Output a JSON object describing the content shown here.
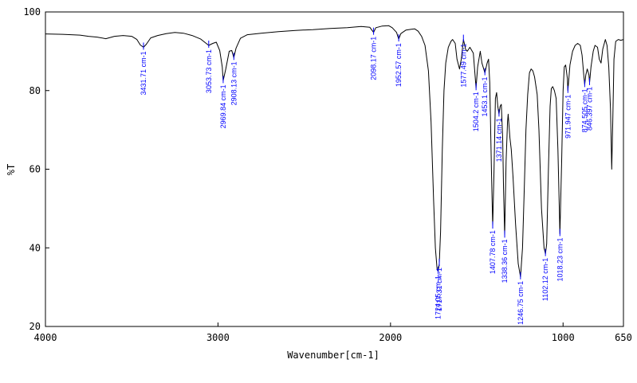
{
  "chart_data": {
    "type": "line",
    "title": "",
    "xlabel": "Wavenumber[cm-1]",
    "ylabel": "%T",
    "xlim": [
      4000,
      650
    ],
    "ylim": [
      20,
      100
    ],
    "x_reversed": true,
    "grid": false,
    "legend": "none",
    "line_color": "#000000",
    "peak_label_color": "#0000ff",
    "x_ticks": [
      {
        "value": 4000,
        "label": "4000"
      },
      {
        "value": 3000,
        "label": "3000"
      },
      {
        "value": 2000,
        "label": "2000"
      },
      {
        "value": 1000,
        "label": "1000"
      },
      {
        "value": 650,
        "label": "650"
      }
    ],
    "y_ticks": [
      {
        "value": 100,
        "label": "100"
      },
      {
        "value": 80,
        "label": "80"
      },
      {
        "value": 60,
        "label": "60"
      },
      {
        "value": 40,
        "label": "40"
      },
      {
        "value": 20,
        "label": "20"
      }
    ],
    "spectrum": [
      [
        4000,
        94.4
      ],
      [
        3900,
        94.3
      ],
      [
        3800,
        94.1
      ],
      [
        3750,
        93.8
      ],
      [
        3700,
        93.6
      ],
      [
        3650,
        93.2
      ],
      [
        3600,
        93.8
      ],
      [
        3550,
        94.0
      ],
      [
        3500,
        93.8
      ],
      [
        3470,
        93.0
      ],
      [
        3450,
        91.6
      ],
      [
        3431.71,
        91.0
      ],
      [
        3415,
        91.8
      ],
      [
        3390,
        93.4
      ],
      [
        3350,
        94.0
      ],
      [
        3300,
        94.5
      ],
      [
        3250,
        94.8
      ],
      [
        3200,
        94.6
      ],
      [
        3150,
        94.0
      ],
      [
        3100,
        93.1
      ],
      [
        3080,
        92.4
      ],
      [
        3053.73,
        91.5
      ],
      [
        3030,
        92.0
      ],
      [
        3010,
        92.3
      ],
      [
        2990,
        90.2
      ],
      [
        2975,
        86.0
      ],
      [
        2969.84,
        82.5
      ],
      [
        2955,
        85.5
      ],
      [
        2935,
        90.0
      ],
      [
        2920,
        90.2
      ],
      [
        2908.13,
        88.4
      ],
      [
        2895,
        90.8
      ],
      [
        2870,
        93.3
      ],
      [
        2830,
        94.2
      ],
      [
        2750,
        94.6
      ],
      [
        2650,
        95.0
      ],
      [
        2550,
        95.3
      ],
      [
        2450,
        95.5
      ],
      [
        2350,
        95.8
      ],
      [
        2250,
        96.0
      ],
      [
        2170,
        96.3
      ],
      [
        2120,
        96.1
      ],
      [
        2098.17,
        94.8
      ],
      [
        2085,
        96.0
      ],
      [
        2050,
        96.4
      ],
      [
        2010,
        96.5
      ],
      [
        1990,
        96.0
      ],
      [
        1965,
        94.8
      ],
      [
        1952.57,
        93.1
      ],
      [
        1940,
        94.5
      ],
      [
        1910,
        95.4
      ],
      [
        1880,
        95.6
      ],
      [
        1860,
        95.7
      ],
      [
        1840,
        95.1
      ],
      [
        1820,
        93.8
      ],
      [
        1800,
        91.5
      ],
      [
        1780,
        85.0
      ],
      [
        1765,
        72.0
      ],
      [
        1750,
        52.0
      ],
      [
        1740,
        40.0
      ],
      [
        1730,
        34.5
      ],
      [
        1724.05,
        34.0
      ],
      [
        1717.31,
        36.0
      ],
      [
        1710,
        44.0
      ],
      [
        1700,
        65.0
      ],
      [
        1690,
        80.0
      ],
      [
        1680,
        87.0
      ],
      [
        1665,
        91.0
      ],
      [
        1650,
        92.5
      ],
      [
        1640,
        93.0
      ],
      [
        1625,
        92.0
      ],
      [
        1615,
        88.0
      ],
      [
        1600,
        85.5
      ],
      [
        1590,
        88.0
      ],
      [
        1577.49,
        93.0
      ],
      [
        1565,
        90.5
      ],
      [
        1555,
        90.0
      ],
      [
        1540,
        91.0
      ],
      [
        1520,
        89.5
      ],
      [
        1504.2,
        80.7
      ],
      [
        1495,
        86.0
      ],
      [
        1480,
        90.0
      ],
      [
        1470,
        87.0
      ],
      [
        1453.1,
        84.5
      ],
      [
        1440,
        87.0
      ],
      [
        1432,
        88.0
      ],
      [
        1425,
        82.0
      ],
      [
        1415,
        60.0
      ],
      [
        1407.78,
        45.5
      ],
      [
        1400,
        60.0
      ],
      [
        1392,
        78.0
      ],
      [
        1385,
        79.5
      ],
      [
        1378,
        76.0
      ],
      [
        1371.14,
        74.0
      ],
      [
        1365,
        76.0
      ],
      [
        1358,
        76.5
      ],
      [
        1350,
        68.0
      ],
      [
        1345,
        55.0
      ],
      [
        1338.36,
        43.2
      ],
      [
        1330,
        62.0
      ],
      [
        1322,
        72.0
      ],
      [
        1318,
        74.0
      ],
      [
        1308,
        68.0
      ],
      [
        1300,
        65.0
      ],
      [
        1290,
        58.0
      ],
      [
        1275,
        46.0
      ],
      [
        1260,
        36.0
      ],
      [
        1246.75,
        32.6
      ],
      [
        1235,
        40.0
      ],
      [
        1225,
        55.0
      ],
      [
        1215,
        70.0
      ],
      [
        1205,
        79.0
      ],
      [
        1195,
        84.5
      ],
      [
        1185,
        85.5
      ],
      [
        1175,
        85.0
      ],
      [
        1165,
        83.5
      ],
      [
        1150,
        79.0
      ],
      [
        1140,
        70.0
      ],
      [
        1125,
        50.0
      ],
      [
        1110,
        40.0
      ],
      [
        1102.12,
        38.5
      ],
      [
        1095,
        41.0
      ],
      [
        1085,
        60.0
      ],
      [
        1075,
        76.0
      ],
      [
        1068,
        80.5
      ],
      [
        1060,
        81.0
      ],
      [
        1050,
        80.0
      ],
      [
        1040,
        78.0
      ],
      [
        1030,
        65.0
      ],
      [
        1018.23,
        43.6
      ],
      [
        1008,
        62.0
      ],
      [
        1000,
        80.0
      ],
      [
        993,
        86.0
      ],
      [
        985,
        86.5
      ],
      [
        975,
        83.0
      ],
      [
        971.947,
        80.0
      ],
      [
        960,
        86.5
      ],
      [
        945,
        90.0
      ],
      [
        930,
        91.5
      ],
      [
        915,
        92.0
      ],
      [
        900,
        91.5
      ],
      [
        890,
        89.0
      ],
      [
        880,
        84.0
      ],
      [
        874.505,
        81.5
      ],
      [
        868,
        84.0
      ],
      [
        860,
        85.5
      ],
      [
        850,
        84.0
      ],
      [
        846.397,
        82.0
      ],
      [
        838,
        86.0
      ],
      [
        825,
        90.0
      ],
      [
        815,
        91.5
      ],
      [
        800,
        91.0
      ],
      [
        790,
        88.0
      ],
      [
        780,
        87.0
      ],
      [
        770,
        90.5
      ],
      [
        755,
        93.0
      ],
      [
        745,
        91.5
      ],
      [
        735,
        86.0
      ],
      [
        725,
        75.0
      ],
      [
        718,
        60.0
      ],
      [
        712,
        72.0
      ],
      [
        705,
        88.0
      ],
      [
        695,
        92.5
      ],
      [
        680,
        93.0
      ],
      [
        665,
        92.8
      ],
      [
        650,
        93.0
      ]
    ],
    "peaks": [
      {
        "x": 3431.71,
        "y": 91.0,
        "label": "3431.71 cm-1"
      },
      {
        "x": 3053.73,
        "y": 91.5,
        "label": "3053.73 cm-1"
      },
      {
        "x": 2969.84,
        "y": 82.5,
        "label": "2969.84 cm-1"
      },
      {
        "x": 2908.13,
        "y": 88.4,
        "label": "2908.13 cm-1"
      },
      {
        "x": 2098.17,
        "y": 94.8,
        "label": "2098.17 cm-1"
      },
      {
        "x": 1952.57,
        "y": 93.1,
        "label": "1952.57 cm-1"
      },
      {
        "x": 1724.05,
        "y": 34.0,
        "label": "1724.05 cm-1"
      },
      {
        "x": 1717.31,
        "y": 36.0,
        "label": "1717.31 cm-1"
      },
      {
        "x": 1577.49,
        "y": 93.0,
        "label": "1577.49 cm-1"
      },
      {
        "x": 1504.2,
        "y": 80.7,
        "label": "1504.2 cm-1"
      },
      {
        "x": 1453.1,
        "y": 84.5,
        "label": "1453.1 cm-1"
      },
      {
        "x": 1407.78,
        "y": 45.5,
        "label": "1407.78 cm-1"
      },
      {
        "x": 1371.14,
        "y": 74.0,
        "label": "1371.14 cm-1"
      },
      {
        "x": 1338.36,
        "y": 43.2,
        "label": "1338.36 cm-1"
      },
      {
        "x": 1246.75,
        "y": 32.6,
        "label": "1246.75 cm-1"
      },
      {
        "x": 1102.12,
        "y": 38.5,
        "label": "1102.12 cm-1"
      },
      {
        "x": 1018.23,
        "y": 43.6,
        "label": "1018.23 cm-1"
      },
      {
        "x": 971.947,
        "y": 80.0,
        "label": "971.947 cm-1"
      },
      {
        "x": 874.505,
        "y": 81.5,
        "label": "874.505 cm-1"
      },
      {
        "x": 846.397,
        "y": 82.0,
        "label": "846.397 cm-1"
      }
    ]
  }
}
